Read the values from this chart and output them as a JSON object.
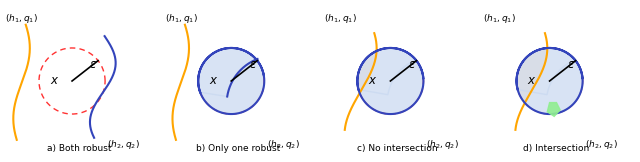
{
  "panels": [
    {
      "label": "a) Both robust",
      "idx": 0
    },
    {
      "label": "b) Only one robust",
      "idx": 1
    },
    {
      "label": "c) No intersection",
      "idx": 2
    },
    {
      "label": "d) Intersection",
      "idx": 3
    }
  ],
  "circle_color": "#FF3333",
  "orange_color": "#FFA500",
  "blue_color": "#3344BB",
  "green_color": "#55BB55",
  "blue_fill": "#C8D8F0",
  "orange_fill": "#FFE4C0",
  "green_fill": "#90EE90",
  "label_fontsize": 6.5,
  "text_fontsize": 8.5,
  "fig_width": 6.4,
  "fig_height": 1.62,
  "dpi": 100
}
